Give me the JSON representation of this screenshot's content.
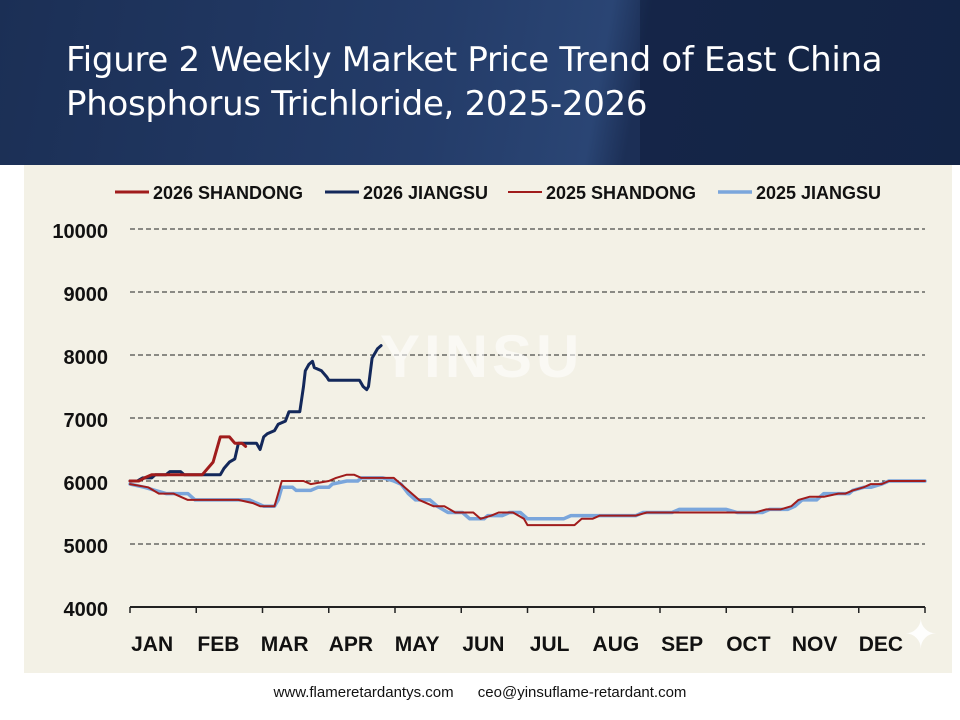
{
  "title": "Figure 2 Weekly Market Price Trend of East China Phosphorus Trichloride, 2025-2026",
  "watermark": "YINSU",
  "footer": {
    "website": "www.flameretardantys.com",
    "email": "ceo@yinsuflame-retardant.com"
  },
  "chart_data": {
    "type": "line",
    "title": "",
    "xlabel": "",
    "ylabel": "",
    "ylim": [
      4000,
      10000
    ],
    "yticks": [
      4000,
      5000,
      6000,
      7000,
      8000,
      9000,
      10000
    ],
    "months": [
      "JAN",
      "FEB",
      "MAR",
      "APR",
      "MAY",
      "JUN",
      "JUL",
      "AUG",
      "SEP",
      "OCT",
      "NOV",
      "DEC"
    ],
    "grid": "dashed horizontal",
    "legend_position": "top",
    "series": [
      {
        "name": "2026 SHANDONG",
        "color": "#a01c1c",
        "width": 3,
        "points": [
          [
            1,
            6000
          ],
          [
            1.25,
            6000
          ],
          [
            1.4,
            6050
          ],
          [
            1.6,
            6100
          ],
          [
            2.0,
            6100
          ],
          [
            2.3,
            6100
          ],
          [
            2.6,
            6100
          ],
          [
            3.0,
            6100
          ],
          [
            3.3,
            6300
          ],
          [
            3.5,
            6700
          ],
          [
            3.75,
            6700
          ],
          [
            3.9,
            6600
          ],
          [
            4.1,
            6600
          ],
          [
            4.2,
            6550
          ]
        ]
      },
      {
        "name": "2026 JIANGSU",
        "color": "#13285a",
        "width": 3,
        "points": [
          [
            1,
            6000
          ],
          [
            1.2,
            6000
          ],
          [
            1.35,
            6050
          ],
          [
            1.6,
            6050
          ],
          [
            1.7,
            6100
          ],
          [
            2.0,
            6100
          ],
          [
            2.1,
            6150
          ],
          [
            2.4,
            6150
          ],
          [
            2.5,
            6100
          ],
          [
            3.0,
            6100
          ],
          [
            3.5,
            6100
          ],
          [
            3.6,
            6200
          ],
          [
            3.75,
            6300
          ],
          [
            3.9,
            6350
          ],
          [
            4.0,
            6600
          ],
          [
            4.5,
            6600
          ],
          [
            4.6,
            6500
          ],
          [
            4.7,
            6700
          ],
          [
            4.8,
            6750
          ],
          [
            5.0,
            6800
          ],
          [
            5.1,
            6900
          ],
          [
            5.3,
            6950
          ],
          [
            5.4,
            7100
          ],
          [
            5.7,
            7100
          ],
          [
            5.8,
            7500
          ],
          [
            5.85,
            7750
          ],
          [
            5.95,
            7850
          ],
          [
            6.05,
            7900
          ],
          [
            6.1,
            7800
          ],
          [
            6.3,
            7750
          ],
          [
            6.45,
            7650
          ],
          [
            6.5,
            7600
          ],
          [
            6.7,
            7600
          ],
          [
            7.0,
            7600
          ],
          [
            7.35,
            7600
          ],
          [
            7.45,
            7500
          ],
          [
            7.55,
            7450
          ],
          [
            7.6,
            7500
          ],
          [
            7.7,
            7950
          ],
          [
            7.85,
            8100
          ],
          [
            7.95,
            8150
          ]
        ]
      },
      {
        "name": "2025 SHANDONG",
        "color": "#a01c1c",
        "width": 2,
        "points": [
          [
            1,
            5950
          ],
          [
            1.5,
            5900
          ],
          [
            1.8,
            5800
          ],
          [
            2.2,
            5800
          ],
          [
            2.6,
            5700
          ],
          [
            3.0,
            5700
          ],
          [
            4.0,
            5700
          ],
          [
            4.4,
            5650
          ],
          [
            4.6,
            5600
          ],
          [
            5.0,
            5600
          ],
          [
            5.2,
            6000
          ],
          [
            5.5,
            6000
          ],
          [
            5.8,
            6000
          ],
          [
            6.0,
            5950
          ],
          [
            6.5,
            6000
          ],
          [
            6.7,
            6050
          ],
          [
            7.0,
            6100
          ],
          [
            7.2,
            6100
          ],
          [
            7.4,
            6050
          ],
          [
            7.6,
            6050
          ],
          [
            8.0,
            6050
          ],
          [
            8.3,
            6050
          ],
          [
            8.4,
            6000
          ],
          [
            8.6,
            5900
          ],
          [
            8.8,
            5800
          ],
          [
            9.0,
            5700
          ],
          [
            9.4,
            5600
          ],
          [
            9.7,
            5600
          ],
          [
            10.0,
            5500
          ],
          [
            10.5,
            5500
          ],
          [
            10.7,
            5400
          ],
          [
            11.0,
            5450
          ],
          [
            11.2,
            5500
          ],
          [
            11.6,
            5500
          ],
          [
            11.9,
            5400
          ],
          [
            12.0,
            5300
          ],
          [
            12.5,
            5300
          ],
          [
            13.0,
            5300
          ],
          [
            13.3,
            5300
          ],
          [
            13.5,
            5400
          ],
          [
            13.8,
            5400
          ],
          [
            14.0,
            5450
          ],
          [
            14.5,
            5450
          ],
          [
            15.0,
            5450
          ],
          [
            15.3,
            5500
          ],
          [
            15.7,
            5500
          ],
          [
            16.0,
            5500
          ],
          [
            16.5,
            5500
          ],
          [
            17.0,
            5500
          ],
          [
            17.5,
            5500
          ],
          [
            18.0,
            5500
          ],
          [
            18.3,
            5500
          ],
          [
            18.6,
            5550
          ],
          [
            19.0,
            5550
          ],
          [
            19.3,
            5600
          ],
          [
            19.5,
            5700
          ],
          [
            19.8,
            5750
          ],
          [
            20.2,
            5750
          ],
          [
            20.6,
            5800
          ],
          [
            20.8,
            5800
          ],
          [
            21.0,
            5850
          ],
          [
            21.3,
            5900
          ],
          [
            21.5,
            5950
          ],
          [
            21.8,
            5950
          ],
          [
            22.0,
            6000
          ],
          [
            22.5,
            6000
          ],
          [
            23.0,
            6000
          ]
        ]
      },
      {
        "name": "2025 JIANGSU",
        "color": "#7aa6dc",
        "width": 3.5,
        "points": [
          [
            1,
            5950
          ],
          [
            1.4,
            5900
          ],
          [
            1.7,
            5850
          ],
          [
            2.0,
            5800
          ],
          [
            2.4,
            5800
          ],
          [
            2.6,
            5800
          ],
          [
            2.8,
            5700
          ],
          [
            3.5,
            5700
          ],
          [
            4.0,
            5700
          ],
          [
            4.3,
            5700
          ],
          [
            4.5,
            5650
          ],
          [
            4.7,
            5600
          ],
          [
            5.0,
            5600
          ],
          [
            5.1,
            5700
          ],
          [
            5.2,
            5900
          ],
          [
            5.5,
            5900
          ],
          [
            5.6,
            5850
          ],
          [
            6.0,
            5850
          ],
          [
            6.2,
            5900
          ],
          [
            6.5,
            5900
          ],
          [
            6.6,
            5950
          ],
          [
            7.0,
            6000
          ],
          [
            7.3,
            6000
          ],
          [
            7.4,
            6050
          ],
          [
            8.0,
            6050
          ],
          [
            8.3,
            6000
          ],
          [
            8.5,
            5950
          ],
          [
            8.7,
            5800
          ],
          [
            8.9,
            5700
          ],
          [
            9.3,
            5700
          ],
          [
            9.5,
            5600
          ],
          [
            9.8,
            5500
          ],
          [
            10.2,
            5500
          ],
          [
            10.4,
            5400
          ],
          [
            10.8,
            5400
          ],
          [
            10.9,
            5450
          ],
          [
            11.3,
            5450
          ],
          [
            11.5,
            5500
          ],
          [
            11.8,
            5500
          ],
          [
            12.0,
            5400
          ],
          [
            12.5,
            5400
          ],
          [
            13.0,
            5400
          ],
          [
            13.2,
            5450
          ],
          [
            13.6,
            5450
          ],
          [
            14.0,
            5450
          ],
          [
            14.5,
            5450
          ],
          [
            15.0,
            5450
          ],
          [
            15.2,
            5500
          ],
          [
            15.6,
            5500
          ],
          [
            16.0,
            5500
          ],
          [
            16.2,
            5550
          ],
          [
            16.6,
            5550
          ],
          [
            17.0,
            5550
          ],
          [
            17.5,
            5550
          ],
          [
            17.8,
            5500
          ],
          [
            18.0,
            5500
          ],
          [
            18.5,
            5500
          ],
          [
            18.7,
            5550
          ],
          [
            19.2,
            5550
          ],
          [
            19.4,
            5600
          ],
          [
            19.6,
            5700
          ],
          [
            20.0,
            5700
          ],
          [
            20.2,
            5800
          ],
          [
            20.6,
            5800
          ],
          [
            20.9,
            5800
          ],
          [
            21.0,
            5850
          ],
          [
            21.3,
            5900
          ],
          [
            21.5,
            5900
          ],
          [
            21.8,
            5950
          ],
          [
            22.0,
            6000
          ],
          [
            22.5,
            6000
          ],
          [
            23.0,
            6000
          ]
        ]
      }
    ]
  }
}
